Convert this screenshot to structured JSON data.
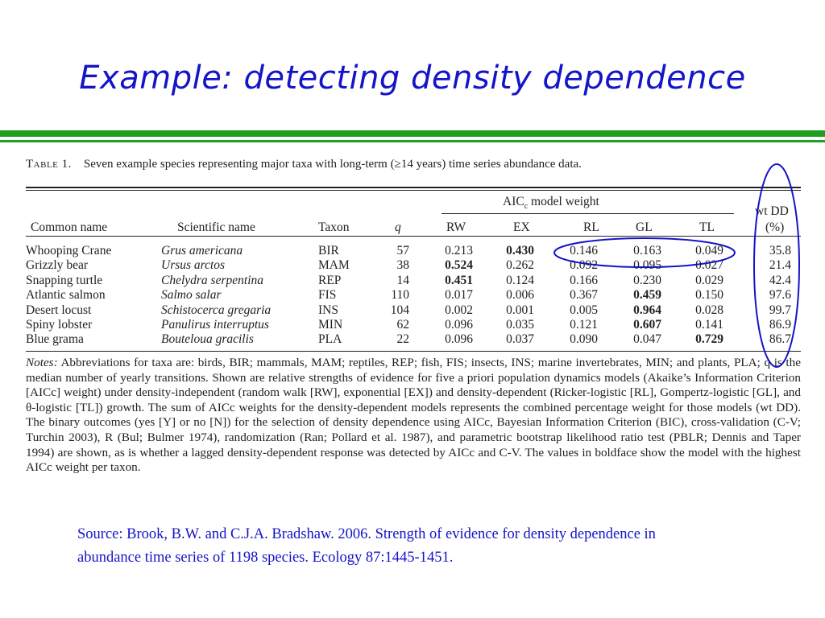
{
  "slide": {
    "title": "Example:  detecting density dependence",
    "accent_color": "#1f9e1f",
    "title_color": "#1414c8"
  },
  "table": {
    "caption_label": "Table 1.",
    "caption_text": "Seven example species representing major taxa with long-term (≥14 years) time series abundance data.",
    "group_header": "AICc model weight",
    "columns": [
      "Common name",
      "Scientific name",
      "Taxon",
      "q",
      "RW",
      "EX",
      "RL",
      "GL",
      "TL",
      "wt DD",
      "(%)"
    ],
    "rows": [
      {
        "common": "Whooping Crane",
        "sci": "Grus americana",
        "taxon": "BIR",
        "q": "57",
        "rw": "0.213",
        "ex": "0.430",
        "rl": "0.146",
        "gl": "0.163",
        "tl": "0.049",
        "wtdd": "35.8"
      },
      {
        "common": "Grizzly bear",
        "sci": "Ursus arctos",
        "taxon": "MAM",
        "q": "38",
        "rw": "0.524",
        "ex": "0.262",
        "rl": "0.092",
        "gl": "0.095",
        "tl": "0.027",
        "wtdd": "21.4"
      },
      {
        "common": "Snapping turtle",
        "sci": "Chelydra serpentina",
        "taxon": "REP",
        "q": "14",
        "rw": "0.451",
        "ex": "0.124",
        "rl": "0.166",
        "gl": "0.230",
        "tl": "0.029",
        "wtdd": "42.4"
      },
      {
        "common": "Atlantic salmon",
        "sci": "Salmo salar",
        "taxon": "FIS",
        "q": "110",
        "rw": "0.017",
        "ex": "0.006",
        "rl": "0.367",
        "gl": "0.459",
        "tl": "0.150",
        "wtdd": "97.6"
      },
      {
        "common": "Desert locust",
        "sci": "Schistocerca gregaria",
        "taxon": "INS",
        "q": "104",
        "rw": "0.002",
        "ex": "0.001",
        "rl": "0.005",
        "gl": "0.964",
        "tl": "0.028",
        "wtdd": "99.7"
      },
      {
        "common": "Spiny lobster",
        "sci": "Panulirus interruptus",
        "taxon": "MIN",
        "q": "62",
        "rw": "0.096",
        "ex": "0.035",
        "rl": "0.121",
        "gl": "0.607",
        "tl": "0.141",
        "wtdd": "86.9"
      },
      {
        "common": "Blue grama",
        "sci": "Bouteloua gracilis",
        "taxon": "PLA",
        "q": "22",
        "rw": "0.096",
        "ex": "0.037",
        "rl": "0.090",
        "gl": "0.047",
        "tl": "0.729",
        "wtdd": "86.7"
      }
    ],
    "bold_cells": {
      "0": "ex",
      "1": "rw",
      "2": "rw",
      "3": "gl",
      "4": "gl",
      "5": "gl",
      "6": "tl"
    },
    "notes_label": "Notes:",
    "notes_text": "Abbreviations for taxa are: birds, BIR; mammals, MAM; reptiles, REP; fish, FIS; insects, INS; marine invertebrates, MIN; and plants, PLA; q is the median number of yearly transitions. Shown are relative strengths of evidence for five a priori population dynamics models (Akaike’s Information Criterion [AICc] weight) under density-independent (random walk [RW], exponential [EX]) and density-dependent (Ricker-logistic [RL], Gompertz-logistic [GL], and θ-logistic [TL]) growth. The sum of AICc weights for the density-dependent models represents the combined percentage weight for those models (wt DD). The binary outcomes (yes [Y] or no [N]) for the selection of density dependence using AICc, Bayesian Information Criterion (BIC), cross-validation (C-V; Turchin 2003), R (Bul; Bulmer 1974), randomization (Ran; Pollard et al. 1987), and parametric bootstrap likelihood ratio test (PBLR; Dennis and Taper 1994) are shown, as is whether a lagged density-dependent response was detected by AICc and C-V. The values in boldface show the model with the highest AICc weight per taxon."
  },
  "source": {
    "text": "Source:  Brook, B.W. and C.J.A. Bradshaw.  2006.  Strength of evidence for density dependence in abundance time series of 1198 species.  Ecology 87:1445-1451."
  }
}
